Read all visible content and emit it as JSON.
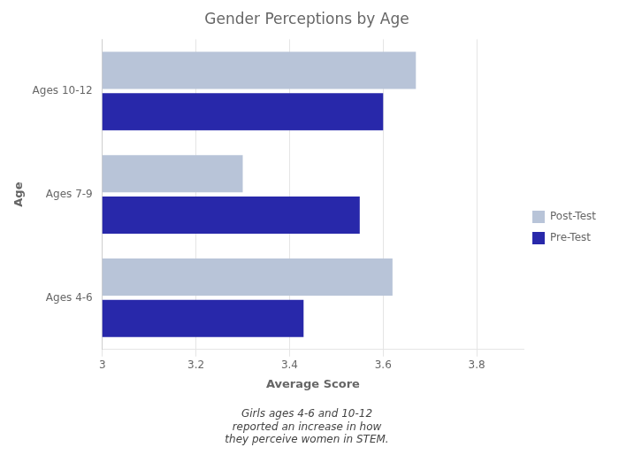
{
  "chart_data": {
    "type": "bar",
    "orientation": "horizontal",
    "title": "Gender Perceptions by Age",
    "xlabel": "Average Score",
    "ylabel": "Age",
    "categories": [
      "Ages 4-6",
      "Ages 7-9",
      "Ages 10-12"
    ],
    "series": [
      {
        "name": "Post-Test",
        "color": "#b8c4d8",
        "values": [
          3.62,
          3.3,
          3.67
        ]
      },
      {
        "name": "Pre-Test",
        "color": "#2828aa",
        "values": [
          3.43,
          3.55,
          3.6
        ]
      }
    ],
    "xlim": [
      3,
      3.9
    ],
    "xticks": [
      3,
      3.2,
      3.4,
      3.6,
      3.8
    ],
    "grid": "x",
    "legend": "right",
    "annotation": "Girls ages 4-6 and 10-12\nreported an increase in how\nthey perceive women in STEM."
  }
}
